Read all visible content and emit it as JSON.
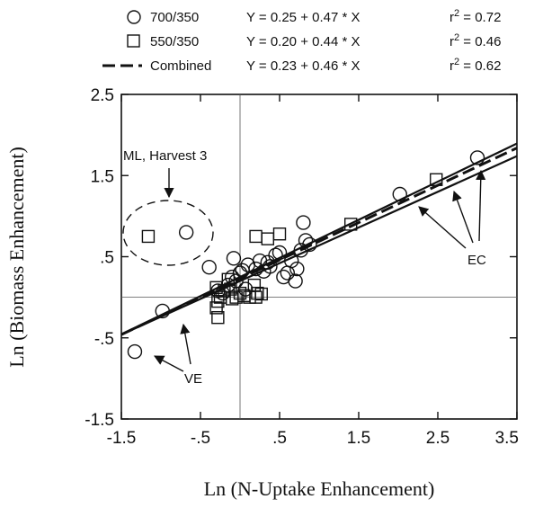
{
  "chart_data": {
    "type": "scatter",
    "xlabel": "Ln (N-Uptake Enhancement)",
    "ylabel": "Ln (Biomass Enhancement)",
    "xlim": [
      -1.5,
      3.5
    ],
    "ylim": [
      -1.5,
      2.5
    ],
    "x_ticks": [
      "-1.5",
      "-.5",
      ".5",
      "1.5",
      "2.5",
      "3.5"
    ],
    "y_ticks": [
      "-1.5",
      "-.5",
      ".5",
      "1.5",
      "2.5"
    ],
    "reference_lines": {
      "x": 0,
      "y": 0
    },
    "legend": [
      {
        "marker": "circle",
        "name": "700/350",
        "equation": "Y = 0.25 + 0.47 * X",
        "r2_label": "r",
        "r2_exp": "2",
        "r2_value": " = 0.72"
      },
      {
        "marker": "square",
        "name": "550/350",
        "equation": "Y = 0.20 + 0.44 * X",
        "r2_label": "r",
        "r2_exp": "2",
        "r2_value": " = 0.46"
      },
      {
        "marker": "dash",
        "name": "Combined",
        "equation": "Y = 0.23 + 0.46 * X",
        "r2_label": "r",
        "r2_exp": "2",
        "r2_value": " = 0.62"
      }
    ],
    "regression_lines": [
      {
        "series": "700/350",
        "intercept": 0.25,
        "slope": 0.47,
        "style": "solid"
      },
      {
        "series": "550/350",
        "intercept": 0.2,
        "slope": 0.44,
        "style": "solid"
      },
      {
        "series": "Combined",
        "intercept": 0.23,
        "slope": 0.46,
        "style": "dashed"
      }
    ],
    "series": [
      {
        "name": "700/350",
        "marker": "circle",
        "points": [
          [
            -1.33,
            -0.67
          ],
          [
            -0.98,
            -0.17
          ],
          [
            -0.68,
            0.8
          ],
          [
            -0.39,
            0.37
          ],
          [
            -0.28,
            0.08
          ],
          [
            -0.22,
            0.05
          ],
          [
            -0.15,
            0.15
          ],
          [
            -0.1,
            0.25
          ],
          [
            -0.05,
            0.2
          ],
          [
            -0.08,
            0.48
          ],
          [
            0.0,
            0.3
          ],
          [
            0.03,
            0.33
          ],
          [
            0.07,
            0.1
          ],
          [
            0.1,
            0.4
          ],
          [
            0.2,
            0.35
          ],
          [
            0.25,
            0.45
          ],
          [
            0.3,
            0.32
          ],
          [
            0.35,
            0.43
          ],
          [
            0.38,
            0.38
          ],
          [
            0.45,
            0.52
          ],
          [
            0.5,
            0.55
          ],
          [
            0.55,
            0.25
          ],
          [
            0.6,
            0.3
          ],
          [
            0.65,
            0.45
          ],
          [
            0.7,
            0.2
          ],
          [
            0.72,
            0.35
          ],
          [
            0.77,
            0.58
          ],
          [
            0.8,
            0.92
          ],
          [
            0.83,
            0.7
          ],
          [
            0.88,
            0.65
          ],
          [
            2.02,
            1.27
          ],
          [
            3.0,
            1.72
          ]
        ]
      },
      {
        "name": "550/350",
        "marker": "square",
        "points": [
          [
            -1.16,
            0.75
          ],
          [
            -0.3,
            0.12
          ],
          [
            -0.28,
            -0.05
          ],
          [
            -0.3,
            -0.13
          ],
          [
            -0.28,
            -0.25
          ],
          [
            -0.25,
            0.0
          ],
          [
            -0.2,
            0.08
          ],
          [
            -0.15,
            0.22
          ],
          [
            -0.12,
            0.1
          ],
          [
            -0.1,
            -0.02
          ],
          [
            -0.05,
            0.0
          ],
          [
            0.0,
            0.05
          ],
          [
            0.05,
            0.02
          ],
          [
            0.12,
            0.0
          ],
          [
            0.18,
            0.15
          ],
          [
            0.2,
            0.0
          ],
          [
            0.22,
            0.05
          ],
          [
            0.2,
            0.75
          ],
          [
            0.27,
            0.04
          ],
          [
            0.35,
            0.72
          ],
          [
            0.5,
            0.78
          ],
          [
            1.4,
            0.9
          ],
          [
            2.48,
            1.45
          ]
        ]
      }
    ],
    "annotations": {
      "ml_label": "ML, Harvest 3",
      "ve_label": "VE",
      "ec_label": "EC"
    }
  }
}
